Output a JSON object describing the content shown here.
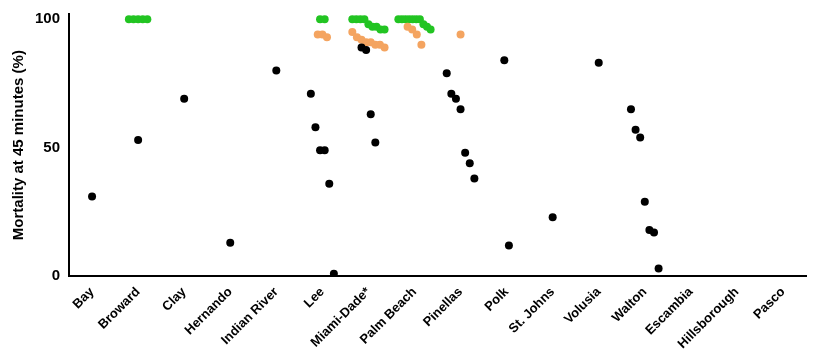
{
  "chart_data": {
    "type": "scatter",
    "ylabel": "Mortality at 45 minutes (%)",
    "categories": [
      "Bay",
      "Broward",
      "Clay",
      "Hernando",
      "Indian River",
      "Lee",
      "Miami-Dade*",
      "Palm Beach",
      "Pinellas",
      "Polk",
      "St. Johns",
      "Volusia",
      "Walton",
      "Escambia",
      "Hillsborough",
      "Pasco"
    ],
    "series": [
      {
        "color": "#000000",
        "marker": "circle",
        "x": [
          "Bay",
          "Broward",
          "Clay",
          "Hernando",
          "Indian River",
          "Lee",
          "Lee",
          "Lee",
          "Lee",
          "Lee",
          "Lee",
          "Miami-Dade*",
          "Miami-Dade*",
          "Miami-Dade*",
          "Miami-Dade*",
          "Pinellas",
          "Pinellas",
          "Pinellas",
          "Pinellas",
          "Pinellas",
          "Pinellas",
          "Pinellas",
          "Polk",
          "Polk",
          "St. Johns",
          "Volusia",
          "Walton",
          "Walton",
          "Walton",
          "Walton",
          "Walton",
          "Walton",
          "Walton"
        ],
        "values": [
          31,
          53,
          69,
          13,
          80,
          71,
          58,
          49,
          49,
          36,
          1,
          89,
          88,
          63,
          52,
          79,
          71,
          69,
          65,
          48,
          44,
          38,
          84,
          12,
          23,
          83,
          65,
          57,
          54,
          29,
          18,
          17,
          3
        ]
      },
      {
        "color": "#f4a460",
        "marker": "circle",
        "x": [
          "Lee",
          "Lee",
          "Lee",
          "Miami-Dade*",
          "Miami-Dade*",
          "Miami-Dade*",
          "Miami-Dade*",
          "Miami-Dade*",
          "Miami-Dade*",
          "Miami-Dade*",
          "Miami-Dade*",
          "Palm Beach",
          "Palm Beach",
          "Palm Beach",
          "Palm Beach",
          "Pinellas"
        ],
        "values": [
          94,
          94,
          93,
          95,
          93,
          92,
          91,
          91,
          90,
          90,
          89,
          97,
          96,
          94,
          90,
          94
        ]
      },
      {
        "color": "#22c422",
        "marker": "circle",
        "x": [
          "Broward",
          "Broward",
          "Broward",
          "Broward",
          "Broward",
          "Lee",
          "Lee",
          "Miami-Dade*",
          "Miami-Dade*",
          "Miami-Dade*",
          "Miami-Dade*",
          "Miami-Dade*",
          "Miami-Dade*",
          "Miami-Dade*",
          "Miami-Dade*",
          "Miami-Dade*",
          "Palm Beach",
          "Palm Beach",
          "Palm Beach",
          "Palm Beach",
          "Palm Beach",
          "Palm Beach",
          "Palm Beach",
          "Palm Beach",
          "Palm Beach",
          "Palm Beach"
        ],
        "values": [
          100,
          100,
          100,
          100,
          100,
          100,
          100,
          100,
          100,
          100,
          100,
          98,
          97,
          97,
          96,
          96,
          100,
          100,
          100,
          100,
          100,
          100,
          100,
          98,
          97,
          96
        ]
      }
    ],
    "ylim": [
      0,
      102
    ],
    "yticks": [
      0,
      50,
      100
    ],
    "grid": false
  }
}
